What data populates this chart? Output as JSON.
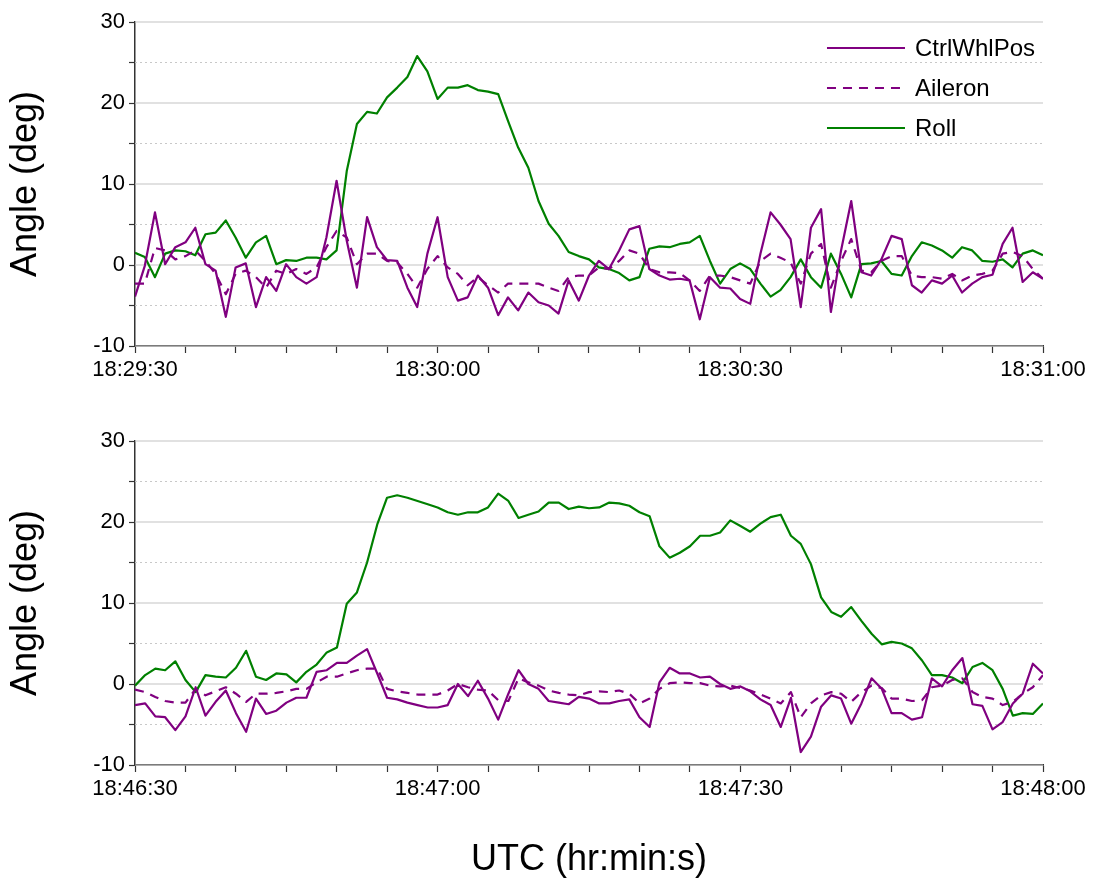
{
  "chart_data": [
    {
      "type": "line",
      "ylabel": "Angle (deg)",
      "legend": "top right",
      "grid": "y",
      "marker": "none",
      "x": [
        18.49167,
        18.49194,
        18.49222,
        18.4925,
        18.49278,
        18.49306,
        18.49333,
        18.49361,
        18.49389,
        18.49417,
        18.49444,
        18.49472,
        18.495,
        18.49528,
        18.49556,
        18.49583,
        18.49611,
        18.49639,
        18.49667,
        18.49694,
        18.49722,
        18.4975,
        18.49778,
        18.49806,
        18.49833,
        18.49861,
        18.49889,
        18.49917,
        18.49944,
        18.49972,
        18.5,
        18.50028,
        18.50056,
        18.50083,
        18.50111,
        18.50139,
        18.50167,
        18.50194,
        18.50222,
        18.5025,
        18.50278,
        18.50306,
        18.50333,
        18.50361,
        18.50389,
        18.50417,
        18.50444,
        18.50472,
        18.505,
        18.50528,
        18.50556,
        18.50583,
        18.50611,
        18.50639,
        18.50667,
        18.50694,
        18.50722,
        18.5075,
        18.50778,
        18.50806,
        18.50833,
        18.50861,
        18.50889,
        18.50917,
        18.50944,
        18.50972,
        18.51,
        18.51028,
        18.51056,
        18.51083,
        18.51111,
        18.51139,
        18.51167,
        18.51194,
        18.51222,
        18.5125,
        18.51278,
        18.51306,
        18.51333,
        18.51361,
        18.51389,
        18.51417,
        18.51444,
        18.51472,
        18.515,
        18.51528,
        18.51556,
        18.51583,
        18.51611,
        18.51639,
        18.51667
      ],
      "xlim": [
        18.49167,
        18.51667
      ],
      "xticks": [
        {
          "value": 18.49167,
          "label": "18:29:30"
        },
        {
          "value": 18.49306,
          "label": null
        },
        {
          "value": 18.49444,
          "label": null
        },
        {
          "value": 18.49583,
          "label": null
        },
        {
          "value": 18.49722,
          "label": null
        },
        {
          "value": 18.49861,
          "label": null
        },
        {
          "value": 18.5,
          "label": "18:30:00"
        },
        {
          "value": 18.50139,
          "label": null
        },
        {
          "value": 18.50278,
          "label": null
        },
        {
          "value": 18.50417,
          "label": null
        },
        {
          "value": 18.50556,
          "label": null
        },
        {
          "value": 18.50694,
          "label": null
        },
        {
          "value": 18.50833,
          "label": "18:30:30"
        },
        {
          "value": 18.50972,
          "label": null
        },
        {
          "value": 18.51111,
          "label": null
        },
        {
          "value": 18.5125,
          "label": null
        },
        {
          "value": 18.51389,
          "label": null
        },
        {
          "value": 18.51528,
          "label": null
        },
        {
          "value": 18.51667,
          "label": "18:31:00"
        }
      ],
      "ylim": [
        -10,
        30
      ],
      "yticks": [
        -10,
        {
          "value": -5,
          "label": null
        },
        0,
        {
          "value": 5,
          "label": null
        },
        10,
        {
          "value": 15,
          "label": null
        },
        20,
        {
          "value": 25,
          "label": null
        },
        30
      ],
      "series": [
        {
          "name": "CtrlWhlPos",
          "color": "#800080",
          "line_style": "solid",
          "values": [
            -3.9,
            -0.1,
            6.5,
            0.1,
            2.2,
            2.8,
            4.6,
            0.1,
            -0.7,
            -6.4,
            -0.3,
            0.2,
            -5.2,
            -1.5,
            -3.2,
            0.1,
            -1.5,
            -2.3,
            -1.5,
            3.4,
            10.4,
            3,
            -2.8,
            5.9,
            2.2,
            0.6,
            0.5,
            -2.8,
            -5.2,
            1.4,
            5.9,
            -1.5,
            -4.4,
            -4,
            -1.3,
            -2.8,
            -6.2,
            -4,
            -5.6,
            -3.4,
            -4.6,
            -5,
            -6,
            -1.9,
            -4.4,
            -1.3,
            0.5,
            -0.5,
            1.8,
            4.4,
            4.8,
            -0.5,
            -1.3,
            -1.8,
            -1.7,
            -1.9,
            -6.7,
            -1.5,
            -2.8,
            -2.9,
            -4.2,
            -4.8,
            1.4,
            6.5,
            5,
            3.2,
            -5.2,
            4.6,
            6.9,
            -5.8,
            1.8,
            7.9,
            -0.9,
            -1.3,
            0.7,
            3.6,
            3.2,
            -2.5,
            -3.4,
            -1.9,
            -2.3,
            -1.3,
            -3.4,
            -2.3,
            -1.5,
            -1.2,
            2.6,
            4.6,
            -2.1,
            -0.9,
            -1.7
          ]
        },
        {
          "name": "Aileron",
          "color": "#800080",
          "line_style": "dashed",
          "values": [
            -2.3,
            -2.3,
            2.1,
            1.8,
            0.7,
            1.1,
            1.8,
            0.5,
            -1.1,
            -3.6,
            -1.1,
            -0.7,
            -1.5,
            -2.8,
            -0.7,
            -1.1,
            -0.5,
            -1.1,
            -0.3,
            2.2,
            4.2,
            3.4,
            0.1,
            1.4,
            1.4,
            0.5,
            0.3,
            -1.1,
            -2.8,
            -0.5,
            1.1,
            -0.3,
            -1.1,
            -2.5,
            -1.5,
            -2.5,
            -3.4,
            -2.3,
            -2.3,
            -2.3,
            -2.3,
            -2.8,
            -3.2,
            -1.5,
            -1.3,
            -1.3,
            -0.3,
            -0.5,
            0.5,
            1.8,
            1.4,
            -0.5,
            -0.9,
            -0.9,
            -1,
            -1.9,
            -3.2,
            -1.3,
            -1.3,
            -1.5,
            -1.9,
            -2.3,
            0.5,
            1.4,
            0.9,
            0.3,
            -2.3,
            1.4,
            2.6,
            -2.8,
            0.5,
            3.2,
            -0.7,
            -0.9,
            0.5,
            1.1,
            1.1,
            -1.3,
            -1.5,
            -1.5,
            -1.7,
            -1.1,
            -1.9,
            -1.3,
            -1.1,
            -0.7,
            1.4,
            1.6,
            1.1,
            -0.5,
            -1.7
          ]
        },
        {
          "name": "Roll",
          "color": "#008000",
          "line_style": "solid",
          "values": [
            1.5,
            1,
            -1.5,
            1.4,
            1.8,
            1.7,
            1.2,
            3.8,
            4,
            5.5,
            3.4,
            0.9,
            2.8,
            3.6,
            0.1,
            0.6,
            0.5,
            0.9,
            0.9,
            0.7,
            1.8,
            11.6,
            17.4,
            18.9,
            18.7,
            20.7,
            21.9,
            23.2,
            25.8,
            23.9,
            20.5,
            21.9,
            21.9,
            22.2,
            21.6,
            21.4,
            21.1,
            17.8,
            14.5,
            12,
            7.9,
            5.1,
            3.6,
            1.6,
            1.1,
            0.7,
            -0.3,
            -0.5,
            -1,
            -1.9,
            -1.5,
            2,
            2.3,
            2.2,
            2.6,
            2.8,
            3.6,
            0.5,
            -2.3,
            -0.5,
            0.2,
            -0.5,
            -2.3,
            -3.9,
            -3.1,
            -1.5,
            0.7,
            -1.5,
            -2.8,
            1.4,
            -1.1,
            -4,
            0.1,
            0.2,
            0.5,
            -1.1,
            -1.3,
            1.1,
            2.8,
            2.4,
            1.8,
            0.9,
            2.2,
            1.8,
            0.5,
            0.4,
            0.7,
            -0.3,
            1.4,
            1.8,
            1.2
          ]
        }
      ]
    },
    {
      "type": "line",
      "ylabel": "Angle (deg)",
      "xlabel": "UTC (hr:min:s)",
      "grid": "y",
      "marker": "none",
      "x": [
        18.775,
        18.77528,
        18.77556,
        18.77583,
        18.77611,
        18.77639,
        18.77667,
        18.77694,
        18.77722,
        18.7775,
        18.77778,
        18.77806,
        18.77833,
        18.77861,
        18.77889,
        18.77917,
        18.77944,
        18.77972,
        18.78,
        18.78028,
        18.78056,
        18.78083,
        18.78111,
        18.78139,
        18.78167,
        18.78194,
        18.78222,
        18.7825,
        18.78278,
        18.78306,
        18.78333,
        18.78361,
        18.78389,
        18.78417,
        18.78444,
        18.78472,
        18.785,
        18.78528,
        18.78556,
        18.78583,
        18.78611,
        18.78639,
        18.78667,
        18.78694,
        18.78722,
        18.7875,
        18.78778,
        18.78806,
        18.78833,
        18.78861,
        18.78889,
        18.78917,
        18.78944,
        18.78972,
        18.79,
        18.79028,
        18.79056,
        18.79083,
        18.79111,
        18.79139,
        18.79167,
        18.79194,
        18.79222,
        18.7925,
        18.79278,
        18.79306,
        18.79333,
        18.79361,
        18.79389,
        18.79417,
        18.79444,
        18.79472,
        18.795,
        18.79528,
        18.79556,
        18.79583,
        18.79611,
        18.79639,
        18.79667,
        18.79694,
        18.79722,
        18.7975,
        18.79778,
        18.79806,
        18.79833,
        18.79861,
        18.79889,
        18.79917,
        18.79944,
        18.79972,
        18.8
      ],
      "xlim": [
        18.775,
        18.8
      ],
      "xticks": [
        {
          "value": 18.775,
          "label": "18:46:30"
        },
        {
          "value": 18.77639,
          "label": null
        },
        {
          "value": 18.77778,
          "label": null
        },
        {
          "value": 18.77917,
          "label": null
        },
        {
          "value": 18.78056,
          "label": null
        },
        {
          "value": 18.78194,
          "label": null
        },
        {
          "value": 18.78333,
          "label": "18:47:00"
        },
        {
          "value": 18.78472,
          "label": null
        },
        {
          "value": 18.78611,
          "label": null
        },
        {
          "value": 18.7875,
          "label": null
        },
        {
          "value": 18.78889,
          "label": null
        },
        {
          "value": 18.79028,
          "label": null
        },
        {
          "value": 18.79167,
          "label": "18:47:30"
        },
        {
          "value": 18.79306,
          "label": null
        },
        {
          "value": 18.79444,
          "label": null
        },
        {
          "value": 18.79583,
          "label": null
        },
        {
          "value": 18.79722,
          "label": null
        },
        {
          "value": 18.79861,
          "label": null
        },
        {
          "value": 18.8,
          "label": "18:48:00"
        }
      ],
      "ylim": [
        -10,
        30
      ],
      "yticks": [
        -10,
        {
          "value": -5,
          "label": null
        },
        0,
        {
          "value": 5,
          "label": null
        },
        10,
        {
          "value": 15,
          "label": null
        },
        20,
        {
          "value": 25,
          "label": null
        },
        30
      ],
      "series": [
        {
          "color": "#800080",
          "line_style": "solid",
          "values": [
            -2.6,
            -2.4,
            -4,
            -4.1,
            -5.7,
            -4,
            -0.4,
            -3.9,
            -2.2,
            -0.8,
            -3.6,
            -5.9,
            -1.8,
            -3.7,
            -3.3,
            -2.3,
            -1.7,
            -1.7,
            1.5,
            1.7,
            2.6,
            2.6,
            3.5,
            4.3,
            1.3,
            -1.7,
            -1.9,
            -2.3,
            -2.6,
            -2.9,
            -2.9,
            -2.6,
            0,
            -1.5,
            0.4,
            -1.8,
            -4.4,
            -1.2,
            1.7,
            0,
            -0.6,
            -2.1,
            -2.3,
            -2.5,
            -1.6,
            -1.8,
            -2.4,
            -2.4,
            -2.1,
            -1.9,
            -4.1,
            -5.3,
            0.2,
            2,
            1.3,
            1.3,
            0.8,
            0.9,
            0,
            -0.6,
            -0.3,
            -0.9,
            -1.9,
            -2.6,
            -5.3,
            -1.7,
            -8.4,
            -6.5,
            -2.8,
            -1.4,
            -1.8,
            -4.9,
            -2.4,
            0.7,
            -0.6,
            -3.6,
            -3.6,
            -4.4,
            -4.1,
            0.7,
            -0.3,
            1.7,
            3.2,
            -2.5,
            -2.7,
            -5.6,
            -4.7,
            -2.4,
            -1.2,
            2.5,
            1.3
          ]
        },
        {
          "color": "#800080",
          "line_style": "dashed",
          "values": [
            -0.7,
            -1,
            -1.6,
            -2.1,
            -2.3,
            -2.3,
            -0.6,
            -1.4,
            -0.9,
            -0.4,
            -1.2,
            -2.2,
            -1.2,
            -1.2,
            -1.1,
            -0.9,
            -0.6,
            -0.6,
            0.2,
            0.9,
            0.9,
            1.3,
            1.7,
            1.9,
            1.9,
            -0.6,
            -0.9,
            -1.1,
            -1.3,
            -1.3,
            -1.3,
            -0.8,
            0,
            -0.4,
            -0.7,
            -0.8,
            -2,
            -2.1,
            0.7,
            0.2,
            -0.2,
            -0.8,
            -1.1,
            -1.3,
            -1.4,
            -1,
            -0.9,
            -1,
            -0.8,
            -1.2,
            -2.4,
            -1.8,
            -0.6,
            0.1,
            0.2,
            0.1,
            0.1,
            -0.2,
            -0.3,
            -0.2,
            -0.5,
            -0.8,
            -1.3,
            -1.8,
            -2.4,
            -1,
            -4.1,
            -2.4,
            -1.4,
            -1,
            -1.2,
            -2.2,
            -1,
            -0.2,
            -0.5,
            -1.8,
            -1.8,
            -2.1,
            -2,
            -0.4,
            -0.2,
            0.5,
            0.7,
            -1,
            -1.6,
            -1.8,
            -2.6,
            -2.2,
            -1.2,
            -0.4,
            1.1
          ]
        },
        {
          "color": "#008000",
          "line_style": "solid",
          "values": [
            -0.2,
            1.1,
            1.9,
            1.7,
            2.8,
            0.5,
            -1,
            1.1,
            0.9,
            0.8,
            2,
            4.1,
            0.9,
            0.5,
            1.3,
            1.2,
            0.2,
            1.5,
            2.4,
            3.9,
            4.5,
            9.9,
            11.3,
            15,
            19.7,
            23,
            23.3,
            23,
            22.6,
            22.2,
            21.8,
            21.2,
            20.9,
            21.2,
            21.2,
            21.8,
            23.5,
            22.6,
            20.5,
            20.9,
            21.3,
            22.4,
            22.4,
            21.6,
            21.9,
            21.7,
            21.8,
            22.4,
            22.3,
            22,
            21.2,
            20.7,
            17,
            15.6,
            16.2,
            17,
            18.3,
            18.3,
            18.7,
            20.2,
            19.5,
            18.8,
            19.8,
            20.6,
            20.9,
            18.3,
            17.3,
            14.8,
            10.7,
            8.9,
            8.3,
            9.5,
            7.8,
            6.2,
            4.9,
            5.2,
            5,
            4.4,
            2.9,
            1.1,
            1.1,
            0.8,
            0.1,
            2.1,
            2.6,
            1.7,
            -0.6,
            -3.9,
            -3.6,
            -3.7,
            -2.4
          ]
        }
      ]
    }
  ]
}
